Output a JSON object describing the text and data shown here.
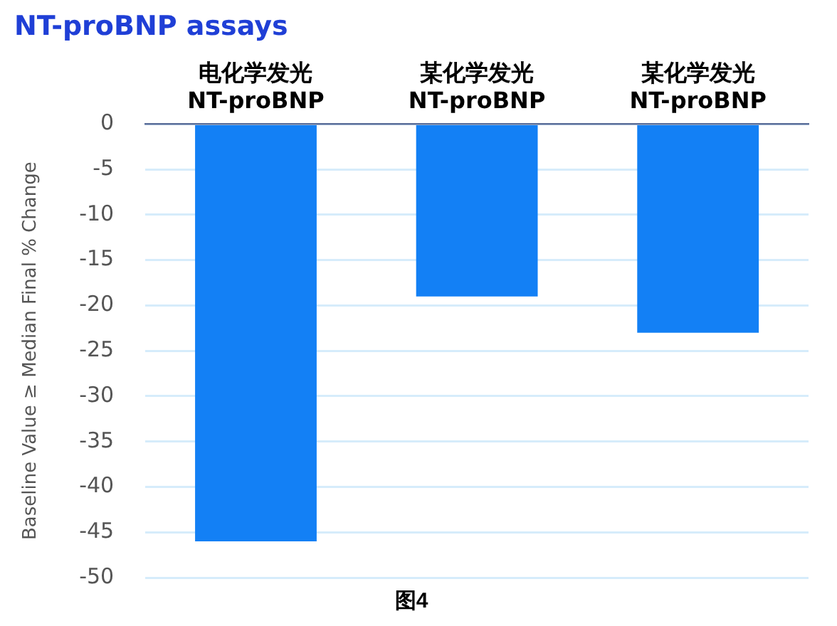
{
  "chart_data": {
    "type": "bar",
    "title": "NT-proBNP assays",
    "categories": [
      "电化学发光\nNT-proBNP",
      "某化学发光\nNT-proBNP",
      "某化学发光\nNT-proBNP"
    ],
    "values": [
      -46,
      -19,
      -23
    ],
    "color": "#1380f5",
    "ylabel": "Baseline Value ≥ Median Final % Change",
    "ylim": [
      -50,
      0
    ],
    "yticks": [
      0,
      -5,
      -10,
      -15,
      -20,
      -25,
      -30,
      -35,
      -40,
      -45,
      -50
    ],
    "grid": "y",
    "legend": false,
    "annotations": [
      "图4"
    ]
  }
}
